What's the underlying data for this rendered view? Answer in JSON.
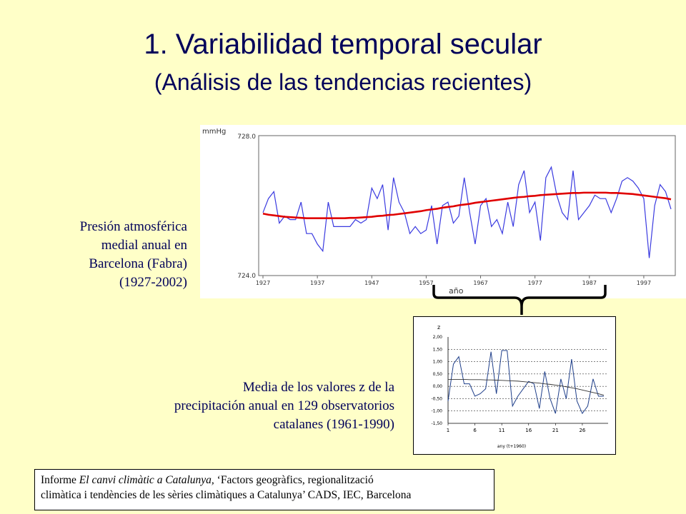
{
  "slide": {
    "title": "1. Variabilidad temporal secular",
    "subtitle": "(Análisis de las tendencias recientes)"
  },
  "captions": {
    "pressure": [
      "Presión atmosférica",
      "medial anual en",
      "Barcelona (Fabra)",
      "(1927-2002)"
    ],
    "precip": [
      "Media de los valores z de la",
      "precipitación anual en 129 observatorios",
      "catalanes (1961-1990)"
    ]
  },
  "source": {
    "line1_prefix": "Informe ",
    "line1_italic": "El canvi climàtic a Catalunya,",
    "line1_suffix": " ‘Factors geogràfics, regionalització",
    "line2": "climàtica i tendències de les sèries climàtiques a Catalunya’ CADS, IEC, Barcelona"
  },
  "colors": {
    "background": "#ffffc8",
    "title": "#00005a",
    "pressure_series": "#3a3ae0",
    "pressure_trend": "#e00000",
    "zscore_series": "#1f3f8a",
    "zscore_trend": "#333333"
  },
  "chart_data": [
    {
      "type": "line",
      "ylabel": "mmHg",
      "xlabel": "año",
      "ylim": [
        724.0,
        728.0
      ],
      "yticks": [
        "728.0",
        "724.0"
      ],
      "xlim": [
        1927,
        2002
      ],
      "xticks": [
        "1927",
        "1937",
        "1947",
        "1957",
        "1967",
        "1977",
        "1987",
        "1997"
      ],
      "grid": false,
      "x": [
        1927,
        1928,
        1929,
        1930,
        1931,
        1932,
        1933,
        1934,
        1935,
        1936,
        1937,
        1938,
        1939,
        1940,
        1941,
        1942,
        1943,
        1944,
        1945,
        1946,
        1947,
        1948,
        1949,
        1950,
        1951,
        1952,
        1953,
        1954,
        1955,
        1956,
        1957,
        1958,
        1959,
        1960,
        1961,
        1962,
        1963,
        1964,
        1965,
        1966,
        1967,
        1968,
        1969,
        1970,
        1971,
        1972,
        1973,
        1974,
        1975,
        1976,
        1977,
        1978,
        1979,
        1980,
        1981,
        1982,
        1983,
        1984,
        1985,
        1986,
        1987,
        1988,
        1989,
        1990,
        1991,
        1992,
        1993,
        1994,
        1995,
        1996,
        1997,
        1998,
        1999,
        2000,
        2001,
        2002
      ],
      "series": [
        {
          "role": "annual",
          "values": [
            725.8,
            726.2,
            726.4,
            725.5,
            725.7,
            725.6,
            725.6,
            726.1,
            725.2,
            725.2,
            724.9,
            724.7,
            726.1,
            725.4,
            725.4,
            725.4,
            725.4,
            725.6,
            725.5,
            725.6,
            726.5,
            726.2,
            726.6,
            725.3,
            726.8,
            726.1,
            725.8,
            725.2,
            725.4,
            725.2,
            725.3,
            726.0,
            724.9,
            726.0,
            726.1,
            725.5,
            725.7,
            726.8,
            725.8,
            724.9,
            726.0,
            726.2,
            725.4,
            725.6,
            725.2,
            726.1,
            725.4,
            726.6,
            727.0,
            725.8,
            726.1,
            725.0,
            726.8,
            727.1,
            726.3,
            725.8,
            725.6,
            727.0,
            725.6,
            725.8,
            726.0,
            726.3,
            726.2,
            726.2,
            725.8,
            726.2,
            726.7,
            726.8,
            726.7,
            726.5,
            726.2,
            724.5,
            726.0,
            726.6,
            726.4,
            725.9
          ]
        },
        {
          "role": "trend",
          "values": [
            725.77,
            725.74,
            725.72,
            725.7,
            725.68,
            725.67,
            725.66,
            725.65,
            725.64,
            725.64,
            725.64,
            725.64,
            725.64,
            725.64,
            725.64,
            725.64,
            725.65,
            725.65,
            725.66,
            725.67,
            725.68,
            725.7,
            725.71,
            725.73,
            725.74,
            725.76,
            725.78,
            725.8,
            725.82,
            725.84,
            725.87,
            725.89,
            725.91,
            725.94,
            725.96,
            725.98,
            726.01,
            726.03,
            726.05,
            726.08,
            726.1,
            726.12,
            726.14,
            726.16,
            726.18,
            726.2,
            726.22,
            726.24,
            726.25,
            726.27,
            726.28,
            726.3,
            726.31,
            726.32,
            726.33,
            726.34,
            726.35,
            726.36,
            726.36,
            726.37,
            726.37,
            726.37,
            726.37,
            726.37,
            726.36,
            726.36,
            726.35,
            726.34,
            726.33,
            726.31,
            726.29,
            726.27,
            726.25,
            726.23,
            726.21,
            726.18
          ]
        }
      ]
    },
    {
      "type": "line",
      "ylabel": "z",
      "xlabel": "any (t+1960)",
      "ylim": [
        -1.5,
        2.0
      ],
      "yticks": [
        "2,00",
        "1,50",
        "1,00",
        "0,50",
        "0,00",
        "-0,50",
        "-1,00",
        "-1,50"
      ],
      "xticks": [
        "1",
        "6",
        "11",
        "16",
        "21",
        "26"
      ],
      "grid": true,
      "x": [
        1,
        2,
        3,
        4,
        5,
        6,
        7,
        8,
        9,
        10,
        11,
        12,
        13,
        14,
        15,
        16,
        17,
        18,
        19,
        20,
        21,
        22,
        23,
        24,
        25,
        26,
        27,
        28,
        29,
        30
      ],
      "series": [
        {
          "role": "annual",
          "values": [
            -0.6,
            0.9,
            1.2,
            0.1,
            0.1,
            -0.4,
            -0.3,
            -0.1,
            1.4,
            -0.3,
            1.45,
            1.45,
            -0.8,
            -0.4,
            -0.1,
            0.2,
            0.1,
            -0.9,
            0.6,
            -0.5,
            -1.1,
            0.3,
            -0.5,
            1.1,
            -0.6,
            -1.1,
            -0.8,
            0.3,
            -0.4,
            -0.4
          ]
        },
        {
          "role": "trend",
          "values": [
            0.28,
            0.28,
            0.28,
            0.28,
            0.27,
            0.27,
            0.27,
            0.26,
            0.26,
            0.25,
            0.24,
            0.23,
            0.22,
            0.21,
            0.19,
            0.17,
            0.15,
            0.13,
            0.1,
            0.08,
            0.05,
            0.02,
            -0.02,
            -0.06,
            -0.1,
            -0.15,
            -0.2,
            -0.25,
            -0.3,
            -0.36
          ]
        }
      ]
    }
  ]
}
